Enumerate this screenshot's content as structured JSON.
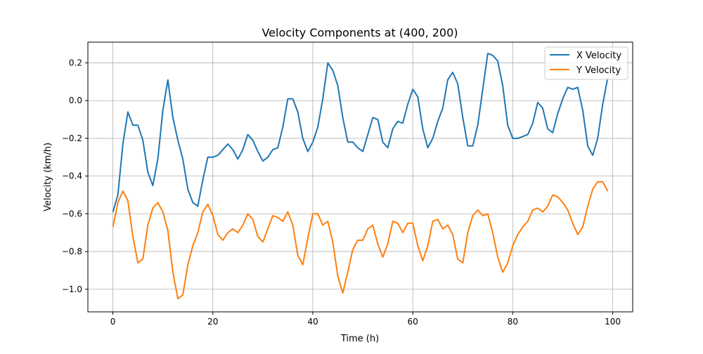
{
  "chart_data": {
    "type": "line",
    "title": "Velocity Components at (400, 200)",
    "xlabel": "Time (h)",
    "ylabel": "Velocity (km/h)",
    "xlim": [
      -5,
      104
    ],
    "ylim": [
      -1.12,
      0.31
    ],
    "xticks": [
      0,
      20,
      40,
      60,
      80,
      100
    ],
    "yticks": [
      -1.0,
      -0.8,
      -0.6,
      -0.4,
      -0.2,
      0.0,
      0.2
    ],
    "xtick_labels": [
      "0",
      "20",
      "40",
      "60",
      "80",
      "100"
    ],
    "ytick_labels": [
      "−1.0",
      "−0.8",
      "−0.6",
      "−0.4",
      "−0.2",
      "0.0",
      "0.2"
    ],
    "grid": true,
    "legend_position": "top-right",
    "x": [
      0,
      1,
      2,
      3,
      4,
      5,
      6,
      7,
      8,
      9,
      10,
      11,
      12,
      13,
      14,
      15,
      16,
      17,
      18,
      19,
      20,
      21,
      22,
      23,
      24,
      25,
      26,
      27,
      28,
      29,
      30,
      31,
      32,
      33,
      34,
      35,
      36,
      37,
      38,
      39,
      40,
      41,
      42,
      43,
      44,
      45,
      46,
      47,
      48,
      49,
      50,
      51,
      52,
      53,
      54,
      55,
      56,
      57,
      58,
      59,
      60,
      61,
      62,
      63,
      64,
      65,
      66,
      67,
      68,
      69,
      70,
      71,
      72,
      73,
      74,
      75,
      76,
      77,
      78,
      79,
      80,
      81,
      82,
      83,
      84,
      85,
      86,
      87,
      88,
      89,
      90,
      91,
      92,
      93,
      94,
      95,
      96,
      97,
      98,
      99
    ],
    "series": [
      {
        "name": "X Velocity",
        "color": "#1f77b4",
        "values": [
          -0.59,
          -0.5,
          -0.23,
          -0.06,
          -0.13,
          -0.13,
          -0.21,
          -0.38,
          -0.45,
          -0.31,
          -0.05,
          0.11,
          -0.09,
          -0.21,
          -0.31,
          -0.47,
          -0.54,
          -0.56,
          -0.42,
          -0.3,
          -0.3,
          -0.29,
          -0.26,
          -0.23,
          -0.26,
          -0.31,
          -0.26,
          -0.18,
          -0.21,
          -0.27,
          -0.32,
          -0.3,
          -0.26,
          -0.25,
          -0.14,
          0.01,
          0.01,
          -0.06,
          -0.2,
          -0.27,
          -0.22,
          -0.14,
          0.01,
          0.2,
          0.16,
          0.08,
          -0.09,
          -0.22,
          -0.22,
          -0.25,
          -0.27,
          -0.18,
          -0.09,
          -0.1,
          -0.22,
          -0.25,
          -0.15,
          -0.11,
          -0.12,
          -0.02,
          0.06,
          0.02,
          -0.15,
          -0.25,
          -0.2,
          -0.11,
          -0.04,
          0.11,
          0.15,
          0.09,
          -0.09,
          -0.24,
          -0.24,
          -0.13,
          0.06,
          0.25,
          0.24,
          0.21,
          0.08,
          -0.13,
          -0.2,
          -0.2,
          -0.19,
          -0.18,
          -0.12,
          -0.01,
          -0.04,
          -0.15,
          -0.17,
          -0.07,
          0.01,
          0.07,
          0.06,
          0.07,
          -0.05,
          -0.24,
          -0.29,
          -0.2,
          -0.02,
          0.12
        ]
      },
      {
        "name": "Y Velocity",
        "color": "#ff7f0e",
        "values": [
          -0.67,
          -0.54,
          -0.48,
          -0.53,
          -0.72,
          -0.86,
          -0.84,
          -0.66,
          -0.57,
          -0.54,
          -0.59,
          -0.69,
          -0.91,
          -1.05,
          -1.03,
          -0.87,
          -0.77,
          -0.7,
          -0.59,
          -0.55,
          -0.61,
          -0.71,
          -0.74,
          -0.7,
          -0.68,
          -0.7,
          -0.66,
          -0.6,
          -0.63,
          -0.72,
          -0.75,
          -0.68,
          -0.61,
          -0.62,
          -0.64,
          -0.59,
          -0.66,
          -0.82,
          -0.87,
          -0.73,
          -0.6,
          -0.6,
          -0.66,
          -0.64,
          -0.75,
          -0.93,
          -1.02,
          -0.91,
          -0.79,
          -0.74,
          -0.74,
          -0.68,
          -0.66,
          -0.76,
          -0.83,
          -0.76,
          -0.64,
          -0.65,
          -0.7,
          -0.65,
          -0.65,
          -0.77,
          -0.85,
          -0.77,
          -0.64,
          -0.63,
          -0.68,
          -0.66,
          -0.71,
          -0.84,
          -0.86,
          -0.7,
          -0.61,
          -0.58,
          -0.61,
          -0.6,
          -0.7,
          -0.83,
          -0.91,
          -0.86,
          -0.77,
          -0.71,
          -0.67,
          -0.64,
          -0.58,
          -0.57,
          -0.59,
          -0.56,
          -0.5,
          -0.51,
          -0.54,
          -0.58,
          -0.65,
          -0.71,
          -0.67,
          -0.56,
          -0.47,
          -0.43,
          -0.43,
          -0.48
        ]
      }
    ]
  }
}
